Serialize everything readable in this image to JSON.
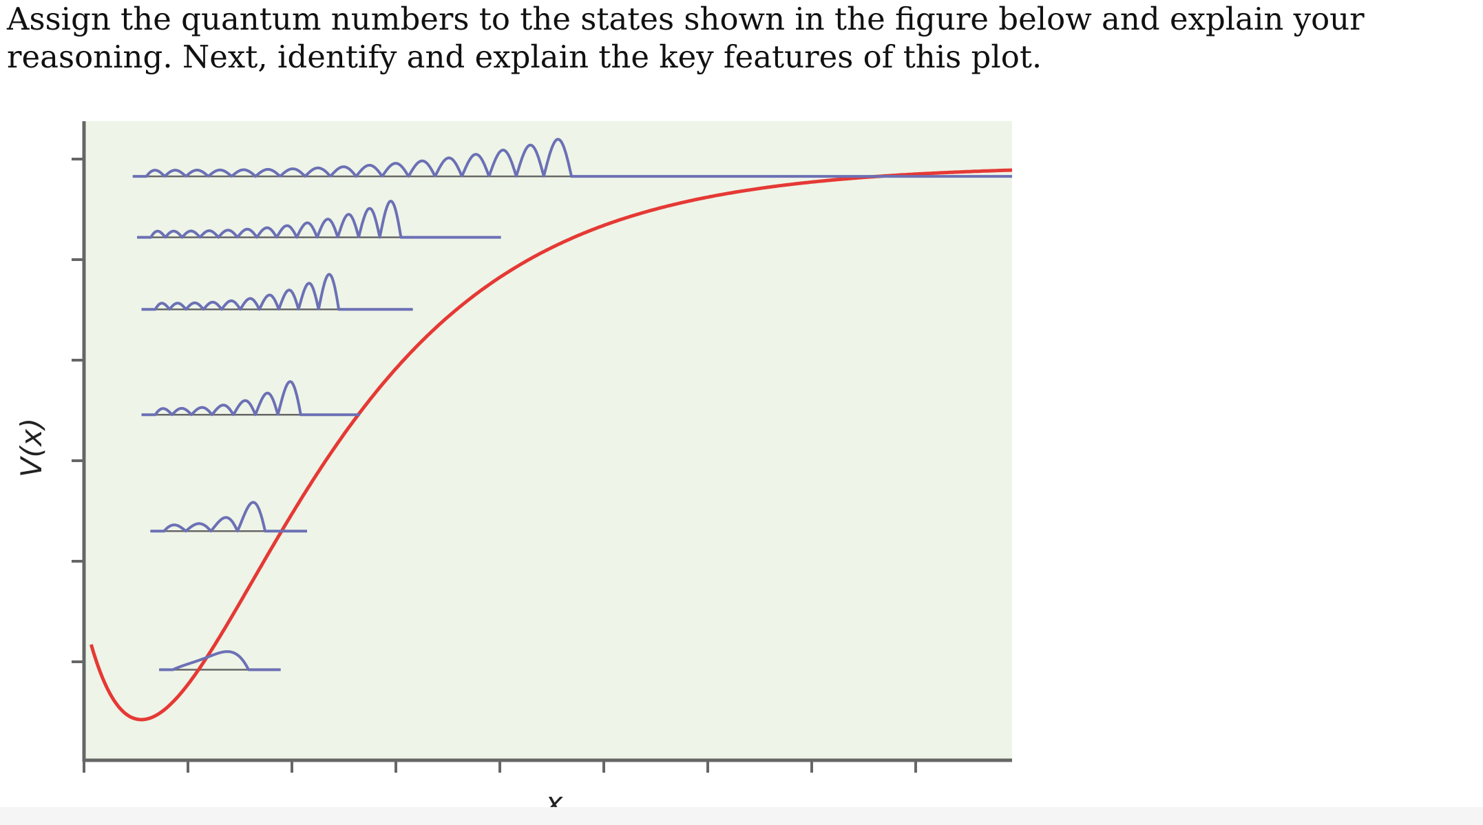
{
  "question": {
    "text": "Assign the quantum numbers to the states shown in the figure below and explain your reasoning. Next, identify and explain the key features of this plot."
  },
  "figure": {
    "y_axis_label": "V(x)",
    "x_axis_label": "x",
    "colors": {
      "plot_background": "#eef4e7",
      "axis": "#666666",
      "potential_curve": "#e53935",
      "wavefunction": "#6b70b5",
      "energy_level_line": "#666666"
    },
    "potential": {
      "type": "Morse potential well",
      "color_name": "red"
    },
    "states": [
      {
        "energy": 0.09,
        "nodes": 0,
        "x_left": 0.04,
        "x_right": 0.17
      },
      {
        "energy": 0.34,
        "nodes": 3,
        "x_left": 0.03,
        "x_right": 0.2
      },
      {
        "energy": 0.55,
        "nodes": 6,
        "x_left": 0.02,
        "x_right": 0.26
      },
      {
        "energy": 0.74,
        "nodes": 9,
        "x_left": 0.02,
        "x_right": 0.32
      },
      {
        "energy": 0.87,
        "nodes": 12,
        "x_left": 0.015,
        "x_right": 0.42
      },
      {
        "energy": 0.98,
        "nodes": 16,
        "x_left": 0.01,
        "x_right": 1.0
      }
    ]
  }
}
